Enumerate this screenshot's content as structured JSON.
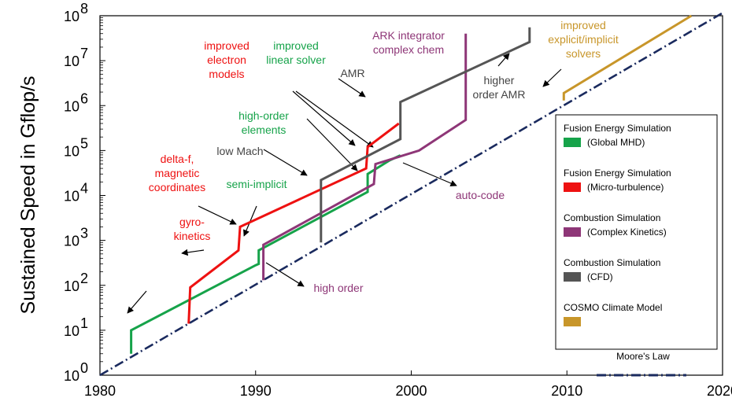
{
  "chart_data": {
    "type": "line",
    "xlabel": "",
    "ylabel": "Sustained Speed in Gflop/s",
    "xlim": [
      1980,
      2020
    ],
    "ylim_log10": [
      0,
      8
    ],
    "y_scale": "log",
    "x_ticks": [
      "1980",
      "1990",
      "2000",
      "2010",
      "2020"
    ],
    "y_tick_bases": [
      "10",
      "10",
      "10",
      "10",
      "10",
      "10",
      "10",
      "10",
      "10"
    ],
    "y_tick_exps": [
      "0",
      "1",
      "2",
      "3",
      "4",
      "5",
      "6",
      "7",
      "8"
    ],
    "legend_position": "right",
    "series": [
      {
        "name": "Fusion Energy Simulation",
        "subname": "(Global MHD)",
        "color": "#16a34a",
        "points": [
          [
            1982.0,
            3
          ],
          [
            1982.0,
            10
          ],
          [
            1990.0,
            280
          ],
          [
            1990.2,
            300
          ],
          [
            1990.2,
            600
          ],
          [
            1997.2,
            12000
          ],
          [
            1997.2,
            30000
          ],
          [
            1998.6,
            60000
          ],
          [
            1999.3,
            78000
          ]
        ]
      },
      {
        "name": "Fusion Energy Simulation",
        "subname": "(Micro-turbulence)",
        "color": "#ee1111",
        "points": [
          [
            1985.7,
            14
          ],
          [
            1985.8,
            90
          ],
          [
            1988.9,
            600
          ],
          [
            1989.0,
            2000
          ],
          [
            1997.1,
            40000
          ],
          [
            1997.2,
            120000
          ],
          [
            1999.2,
            400000
          ]
        ]
      },
      {
        "name": "Combustion Simulation",
        "subname": "(Complex Kinetics)",
        "color": "#8e3677",
        "points": [
          [
            1990.5,
            130
          ],
          [
            1990.5,
            800
          ],
          [
            1997.6,
            18000
          ],
          [
            1997.7,
            50000
          ],
          [
            2000.5,
            100000
          ],
          [
            2003.5,
            480000
          ],
          [
            2003.5,
            40000000
          ]
        ]
      },
      {
        "name": "Combustion Simulation",
        "subname": "(CFD)",
        "color": "#555555",
        "points": [
          [
            1994.2,
            900
          ],
          [
            1994.2,
            22000
          ],
          [
            1999.3,
            180000
          ],
          [
            1999.3,
            1200000
          ],
          [
            2007.6,
            26000000
          ],
          [
            2007.6,
            55000000
          ]
        ]
      },
      {
        "name": "COSMO Climate Model",
        "subname": "",
        "color": "#c8962a",
        "points": [
          [
            2009.8,
            1300000
          ],
          [
            2009.8,
            1900000
          ],
          [
            2018.0,
            100000000
          ]
        ]
      },
      {
        "name": "Moore's Law",
        "subname": "",
        "color": "#1a2a5e",
        "dashed": true,
        "points": [
          [
            1980.0,
            1
          ],
          [
            2020.0,
            115000000
          ]
        ]
      }
    ],
    "annotations": [
      {
        "lines": [
          "improved",
          "electron",
          "models"
        ],
        "color": "#ee1111"
      },
      {
        "lines": [
          "improved",
          "linear solver"
        ],
        "color": "#16a34a"
      },
      {
        "lines": [
          "ARK integrator",
          "complex chem"
        ],
        "color": "#8e3677"
      },
      {
        "lines": [
          "improved",
          "explicit/implicit",
          "solvers"
        ],
        "color": "#c8962a"
      },
      {
        "lines": [
          "AMR"
        ],
        "color": "#444444"
      },
      {
        "lines": [
          "higher",
          "order AMR"
        ],
        "color": "#444444"
      },
      {
        "lines": [
          "high-order",
          "elements"
        ],
        "color": "#16a34a"
      },
      {
        "lines": [
          "low Mach"
        ],
        "color": "#444444"
      },
      {
        "lines": [
          "delta-f,",
          "magnetic",
          "coordinates"
        ],
        "color": "#ee1111"
      },
      {
        "lines": [
          "semi-implicit"
        ],
        "color": "#16a34a"
      },
      {
        "lines": [
          "gyro-",
          "kinetics"
        ],
        "color": "#ee1111"
      },
      {
        "lines": [
          "auto-code"
        ],
        "color": "#8e3677"
      },
      {
        "lines": [
          "high order"
        ],
        "color": "#8e3677"
      }
    ]
  }
}
